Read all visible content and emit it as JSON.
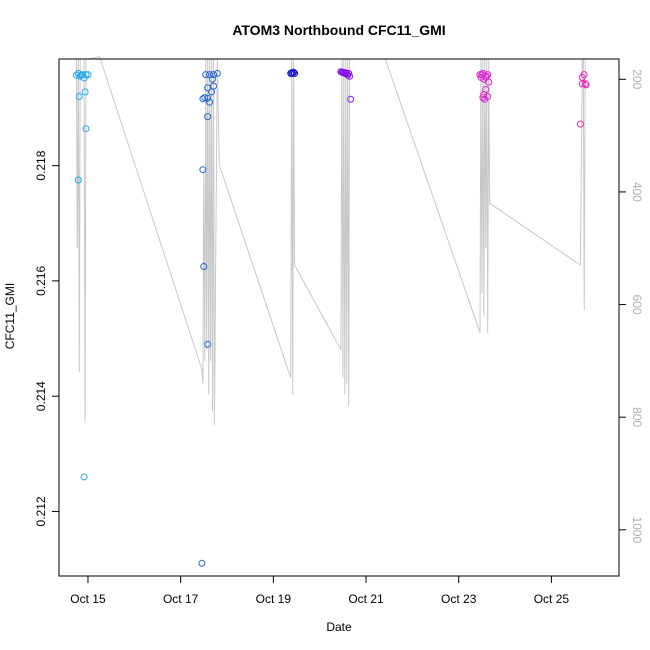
{
  "chart_data": {
    "type": "scatter",
    "title": "ATOM3 Northbound CFC11_GMI",
    "xlabel": "Date",
    "ylabel": "CFC11_GMI",
    "xlim": [
      "2016-10-14T09:00",
      "2016-10-26T11:00"
    ],
    "ylim": [
      0.21088,
      0.21985
    ],
    "x_ticks": [
      {
        "value": "2016-10-15T00:00",
        "label": "Oct 15"
      },
      {
        "value": "2016-10-17T00:00",
        "label": "Oct 17"
      },
      {
        "value": "2016-10-19T00:00",
        "label": "Oct 19"
      },
      {
        "value": "2016-10-21T00:00",
        "label": "Oct 21"
      },
      {
        "value": "2016-10-23T00:00",
        "label": "Oct 23"
      },
      {
        "value": "2016-10-25T00:00",
        "label": "Oct 25"
      }
    ],
    "y_ticks": [
      0.212,
      0.214,
      0.216,
      0.218
    ],
    "y2": {
      "label": "",
      "lim": [
        1082,
        164
      ],
      "ticks": [
        200,
        400,
        600,
        800,
        1000
      ],
      "color": "#b0b0b0"
    },
    "grid": false,
    "legend": "none",
    "marker": "open-circle",
    "series": [
      {
        "color": "#22aaee",
        "points": [
          [
            "2016-10-14T18:00",
            0.21957
          ],
          [
            "2016-10-14T19:00",
            0.2196
          ],
          [
            "2016-10-14T20:00",
            0.21955
          ],
          [
            "2016-10-14T21:00",
            0.21958
          ],
          [
            "2016-10-14T22:00",
            0.21952
          ],
          [
            "2016-10-14T23:00",
            0.21958
          ],
          [
            "2016-10-14T19:30",
            0.2192
          ],
          [
            "2016-10-14T22:30",
            0.21928
          ],
          [
            "2016-10-14T23:00",
            0.21864
          ],
          [
            "2016-10-14T19:00",
            0.21775
          ],
          [
            "2016-10-14T22:00",
            0.2126
          ],
          [
            "2016-10-15T00:00",
            0.21958
          ],
          [
            "2016-10-14T20:30",
            0.21957
          ]
        ]
      },
      {
        "color": "#2266dd",
        "points": [
          [
            "2016-10-17T11:00",
            0.2111
          ],
          [
            "2016-10-17T11:30",
            0.21793
          ],
          [
            "2016-10-17T12:00",
            0.21625
          ],
          [
            "2016-10-17T14:00",
            0.2149
          ],
          [
            "2016-10-17T11:30",
            0.21916
          ],
          [
            "2016-10-17T12:30",
            0.21918
          ],
          [
            "2016-10-17T13:00",
            0.21958
          ],
          [
            "2016-10-17T14:00",
            0.21935
          ],
          [
            "2016-10-17T14:00",
            0.21885
          ],
          [
            "2016-10-17T14:00",
            0.21917
          ],
          [
            "2016-10-17T15:00",
            0.21958
          ],
          [
            "2016-10-17T15:00",
            0.2191
          ],
          [
            "2016-10-17T16:00",
            0.21928
          ],
          [
            "2016-10-17T16:30",
            0.2195
          ],
          [
            "2016-10-17T17:00",
            0.21958
          ],
          [
            "2016-10-17T17:00",
            0.21938
          ],
          [
            "2016-10-17T19:00",
            0.2196
          ]
        ]
      },
      {
        "color": "#1111cc",
        "points": [
          [
            "2016-10-19T09:00",
            0.2196
          ],
          [
            "2016-10-19T09:30",
            0.21961
          ],
          [
            "2016-10-19T10:00",
            0.2196
          ],
          [
            "2016-10-19T10:30",
            0.21962
          ],
          [
            "2016-10-19T11:00",
            0.2196
          ]
        ]
      },
      {
        "color": "#8811ee",
        "points": [
          [
            "2016-10-20T11:00",
            0.21963
          ],
          [
            "2016-10-20T11:30",
            0.21962
          ],
          [
            "2016-10-20T12:00",
            0.21962
          ],
          [
            "2016-10-20T12:30",
            0.21961
          ],
          [
            "2016-10-20T13:00",
            0.2196
          ],
          [
            "2016-10-20T13:30",
            0.21961
          ],
          [
            "2016-10-20T14:00",
            0.2196
          ],
          [
            "2016-10-20T14:30",
            0.21957
          ],
          [
            "2016-10-20T15:00",
            0.2196
          ],
          [
            "2016-10-20T15:30",
            0.21955
          ],
          [
            "2016-10-20T16:00",
            0.21915
          ]
        ]
      },
      {
        "color": "#dd22cc",
        "points": [
          [
            "2016-10-23T11:00",
            0.21958
          ],
          [
            "2016-10-23T11:30",
            0.21953
          ],
          [
            "2016-10-23T12:00",
            0.21958
          ],
          [
            "2016-10-23T12:30",
            0.21918
          ],
          [
            "2016-10-23T12:30",
            0.2196
          ],
          [
            "2016-10-23T13:00",
            0.21923
          ],
          [
            "2016-10-23T13:00",
            0.2195
          ],
          [
            "2016-10-23T13:30",
            0.21915
          ],
          [
            "2016-10-23T14:00",
            0.21932
          ],
          [
            "2016-10-23T14:00",
            0.21953
          ],
          [
            "2016-10-23T14:30",
            0.21955
          ],
          [
            "2016-10-23T15:00",
            0.2192
          ],
          [
            "2016-10-23T15:00",
            0.21958
          ],
          [
            "2016-10-23T15:30",
            0.21945
          ]
        ]
      },
      {
        "color": "#ee22bb",
        "points": [
          [
            "2016-10-25T15:00",
            0.21872
          ],
          [
            "2016-10-25T16:00",
            0.21953
          ],
          [
            "2016-10-25T16:00",
            0.21942
          ],
          [
            "2016-10-25T17:00",
            0.21958
          ],
          [
            "2016-10-25T17:30",
            0.21942
          ],
          [
            "2016-10-25T18:00",
            0.2194
          ]
        ]
      }
    ],
    "y2_series": {
      "name": "",
      "color": "#c8c8c8",
      "points": [
        [
          "2016-10-14T18:00",
          164
        ],
        [
          "2016-10-14T18:30",
          500
        ],
        [
          "2016-10-14T19:00",
          164
        ],
        [
          "2016-10-14T19:30",
          720
        ],
        [
          "2016-10-14T20:00",
          164
        ],
        [
          "2016-10-14T21:00",
          164
        ],
        [
          "2016-10-14T22:00",
          164
        ],
        [
          "2016-10-14T22:30",
          810
        ],
        [
          "2016-10-14T23:00",
          164
        ],
        [
          "2016-10-14T23:30",
          164
        ],
        [
          "2016-10-15T00:00",
          164
        ],
        [
          "2016-10-15T06:00",
          160
        ],
        [
          "2016-10-17T11:00",
          715
        ],
        [
          "2016-10-17T11:30",
          740
        ],
        [
          "2016-10-17T12:00",
          360
        ],
        [
          "2016-10-17T12:30",
          700
        ],
        [
          "2016-10-17T13:00",
          164
        ],
        [
          "2016-10-17T13:30",
          680
        ],
        [
          "2016-10-17T14:00",
          164
        ],
        [
          "2016-10-17T14:30",
          760
        ],
        [
          "2016-10-17T15:00",
          164
        ],
        [
          "2016-10-17T15:30",
          700
        ],
        [
          "2016-10-17T16:00",
          164
        ],
        [
          "2016-10-17T16:30",
          790
        ],
        [
          "2016-10-17T17:00",
          164
        ],
        [
          "2016-10-17T17:30",
          815
        ],
        [
          "2016-10-17T19:00",
          164
        ],
        [
          "2016-10-17T20:00",
          352
        ],
        [
          "2016-10-19T09:00",
          730
        ],
        [
          "2016-10-19T09:30",
          164
        ],
        [
          "2016-10-19T10:00",
          760
        ],
        [
          "2016-10-19T10:30",
          164
        ],
        [
          "2016-10-19T11:00",
          530
        ],
        [
          "2016-10-20T11:00",
          680
        ],
        [
          "2016-10-20T11:30",
          164
        ],
        [
          "2016-10-20T12:00",
          730
        ],
        [
          "2016-10-20T12:30",
          164
        ],
        [
          "2016-10-20T13:00",
          760
        ],
        [
          "2016-10-20T13:30",
          164
        ],
        [
          "2016-10-20T14:00",
          740
        ],
        [
          "2016-10-20T14:30",
          164
        ],
        [
          "2016-10-20T15:00",
          780
        ],
        [
          "2016-10-20T15:30",
          164
        ],
        [
          "2016-10-20T16:00",
          164
        ],
        [
          "2016-10-21T10:00",
          164
        ],
        [
          "2016-10-23T11:00",
          650
        ],
        [
          "2016-10-23T11:30",
          164
        ],
        [
          "2016-10-23T12:00",
          580
        ],
        [
          "2016-10-23T12:30",
          164
        ],
        [
          "2016-10-23T13:00",
          620
        ],
        [
          "2016-10-23T13:30",
          164
        ],
        [
          "2016-10-23T14:00",
          500
        ],
        [
          "2016-10-23T14:30",
          164
        ],
        [
          "2016-10-23T15:00",
          650
        ],
        [
          "2016-10-23T15:30",
          164
        ],
        [
          "2016-10-23T16:00",
          420
        ],
        [
          "2016-10-25T15:00",
          530
        ],
        [
          "2016-10-25T16:00",
          164
        ],
        [
          "2016-10-25T16:30",
          164
        ],
        [
          "2016-10-25T17:00",
          610
        ],
        [
          "2016-10-25T17:30",
          164
        ],
        [
          "2016-10-25T18:00",
          164
        ]
      ]
    }
  }
}
